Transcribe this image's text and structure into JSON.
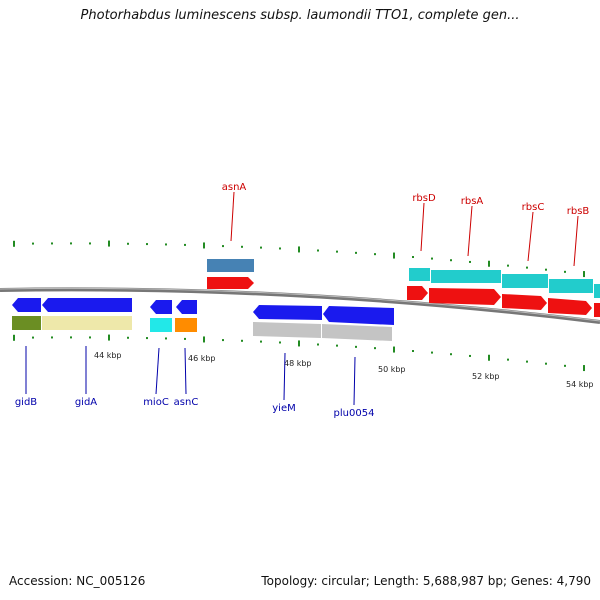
{
  "title": "Photorhabdus luminescens subsp. laumondii TTO1, complete gen...",
  "footer": {
    "accession": "Accession: NC_005126",
    "summary": "Topology: circular; Length: 5,688,987 bp; Genes: 4,790"
  },
  "scale_labels": [
    "44 kbp",
    "46 kbp",
    "48 kbp",
    "50 kbp",
    "52 kbp",
    "54 kbp"
  ],
  "top_genes": [
    "asnA",
    "rbsD",
    "rbsA",
    "rbsC",
    "rbsB"
  ],
  "bottom_genes": [
    "gidB",
    "gidA",
    "mioC",
    "asnC",
    "yieM",
    "plu0054"
  ],
  "colors": {
    "gene_blue": "#1a1aee",
    "gene_red": "#ee1111",
    "cyan": "#22cccc",
    "gray": "#c4c4c4",
    "olive": "#6b8e23",
    "khaki": "#eee8aa",
    "orange": "#ff8c00",
    "steel": "#4682b4",
    "tick": "#228b22",
    "top_label": "#cc0000",
    "bottom_label": "#0000aa"
  }
}
